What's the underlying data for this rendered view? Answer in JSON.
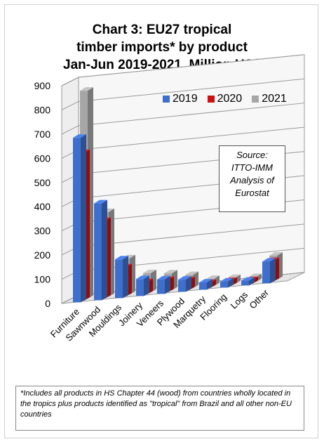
{
  "title_lines": [
    "Chart 3: EU27 tropical",
    "timber imports* by product",
    "Jan-Jun 2019-2021, Million US$"
  ],
  "source_lines": [
    "Source:",
    "ITTO-IMM",
    "Analysis of",
    "Eurostat"
  ],
  "footnote": "*Includes all products in HS Chapter 44 (wood) from countries wholly located in the tropics plus products identified as \"tropical\" from Brazil and all other non-EU countries",
  "colors": {
    "2019": "#3f6fcc",
    "2020": "#cc1111",
    "2021": "#a6a6a6"
  },
  "chart_data": {
    "type": "bar",
    "title": "Chart 3: EU27 tropical timber imports* by product Jan-Jun 2019-2021, Million US$",
    "categories": [
      "Furniture",
      "Sawnwood",
      "Mouldings",
      "Joinery",
      "Veneers",
      "Plywood",
      "Marquetry",
      "Flooring",
      "Logs",
      "Other"
    ],
    "series": [
      {
        "name": "2019",
        "values": [
          680,
          400,
          160,
          70,
          60,
          50,
          30,
          25,
          20,
          90
        ]
      },
      {
        "name": "2020",
        "values": [
          610,
          320,
          120,
          50,
          50,
          40,
          20,
          20,
          15,
          85
        ]
      },
      {
        "name": "2021",
        "values": [
          860,
          350,
          150,
          80,
          70,
          55,
          30,
          25,
          20,
          100
        ]
      }
    ],
    "ylim": [
      0,
      900
    ],
    "yticks": [
      0,
      100,
      200,
      300,
      400,
      500,
      600,
      700,
      800,
      900
    ],
    "grid": true,
    "legend": "top-right"
  }
}
